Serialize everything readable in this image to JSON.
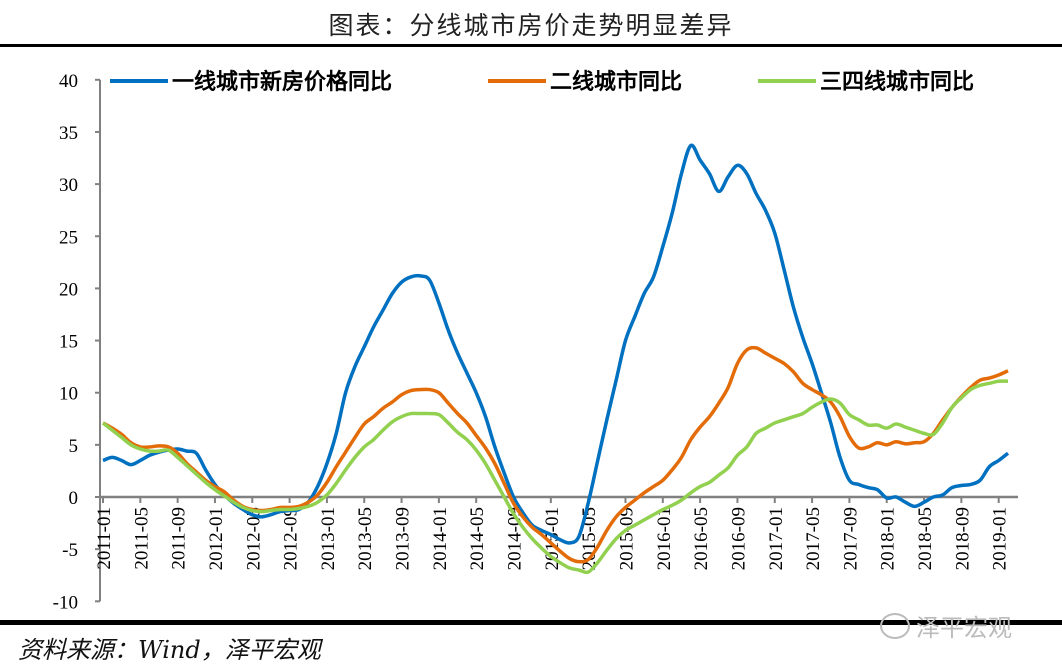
{
  "title": "图表：分线城市房价走势明显差异",
  "source": "资料来源：Wind，泽平宏观",
  "watermark": "泽平宏观",
  "chart_data": {
    "type": "line",
    "title": "",
    "xlabel": "",
    "ylabel": "",
    "ylim": [
      -10,
      40
    ],
    "yticks": [
      -10,
      -5,
      0,
      5,
      10,
      15,
      20,
      25,
      30,
      35,
      40
    ],
    "grid": false,
    "legend_position": "top",
    "x_start": "2011-01",
    "x_end": "2019-02",
    "x_tick_labels": [
      "2011-01",
      "2011-05",
      "2011-09",
      "2012-01",
      "2012-05",
      "2012-09",
      "2013-01",
      "2013-05",
      "2013-09",
      "2014-01",
      "2014-05",
      "2014-09",
      "2015-01",
      "2015-05",
      "2015-09",
      "2016-01",
      "2016-05",
      "2016-09",
      "2017-01",
      "2017-05",
      "2017-09",
      "2018-01",
      "2018-05",
      "2018-09",
      "2019-01"
    ],
    "series": [
      {
        "name": "一线城市新房价格同比",
        "color": "#0070C0",
        "values": [
          3.5,
          3.8,
          3.5,
          3.1,
          3.5,
          4.0,
          4.3,
          4.5,
          4.6,
          4.4,
          4.2,
          2.6,
          1.2,
          0.2,
          -0.6,
          -1.2,
          -1.7,
          -1.9,
          -1.7,
          -1.4,
          -1.3,
          -1.2,
          -0.5,
          1.0,
          3.2,
          6.1,
          10.0,
          12.5,
          14.4,
          16.3,
          17.9,
          19.5,
          20.6,
          21.1,
          21.2,
          20.8,
          18.6,
          16.0,
          13.8,
          11.9,
          10.0,
          7.7,
          4.8,
          2.3,
          0.0,
          -1.5,
          -2.7,
          -3.2,
          -3.6,
          -4.1,
          -4.4,
          -3.8,
          -0.6,
          3.4,
          7.4,
          11.2,
          15.0,
          17.3,
          19.5,
          21.1,
          24.0,
          27.2,
          31.0,
          33.7,
          32.3,
          31.0,
          29.3,
          30.7,
          31.8,
          31.0,
          29.1,
          27.5,
          25.3,
          21.8,
          18.2,
          15.3,
          12.8,
          10.0,
          7.1,
          3.8,
          1.6,
          1.2,
          0.9,
          0.7,
          -0.1,
          0.0,
          -0.5,
          -0.9,
          -0.5,
          0.0,
          0.2,
          0.9,
          1.1,
          1.2,
          1.6,
          2.9,
          3.5,
          4.2
        ]
      },
      {
        "name": "二线城市同比",
        "color": "#E36C09",
        "values": [
          7.1,
          6.6,
          6.0,
          5.2,
          4.8,
          4.8,
          4.9,
          4.8,
          4.2,
          3.2,
          2.4,
          1.6,
          1.0,
          0.5,
          -0.3,
          -0.9,
          -1.2,
          -1.3,
          -1.2,
          -1.0,
          -1.0,
          -0.9,
          -0.5,
          0.2,
          1.4,
          2.9,
          4.3,
          5.7,
          7.0,
          7.7,
          8.5,
          9.1,
          9.8,
          10.2,
          10.3,
          10.3,
          10.0,
          9.0,
          8.0,
          7.1,
          5.9,
          4.7,
          3.2,
          1.3,
          -0.6,
          -1.9,
          -2.9,
          -3.6,
          -4.4,
          -5.2,
          -5.9,
          -6.2,
          -6.0,
          -4.8,
          -3.2,
          -1.9,
          -1.0,
          -0.3,
          0.4,
          1.0,
          1.6,
          2.6,
          3.8,
          5.5,
          6.7,
          7.7,
          9.0,
          10.5,
          12.8,
          14.1,
          14.3,
          13.8,
          13.3,
          12.8,
          12.0,
          10.9,
          10.3,
          9.8,
          9.1,
          7.7,
          5.8,
          4.7,
          4.8,
          5.2,
          5.0,
          5.3,
          5.1,
          5.2,
          5.3,
          6.1,
          7.4,
          8.6,
          9.6,
          10.5,
          11.2,
          11.4,
          11.7,
          12.1
        ]
      },
      {
        "name": "三四线城市同比",
        "color": "#92D050",
        "values": [
          7.1,
          6.4,
          5.7,
          5.0,
          4.6,
          4.4,
          4.4,
          4.5,
          3.8,
          3.0,
          2.2,
          1.4,
          0.7,
          0.1,
          -0.5,
          -1.0,
          -1.3,
          -1.4,
          -1.3,
          -1.2,
          -1.2,
          -1.1,
          -0.9,
          -0.5,
          0.2,
          1.3,
          2.6,
          3.8,
          4.8,
          5.5,
          6.4,
          7.2,
          7.7,
          8.0,
          8.0,
          8.0,
          7.9,
          7.1,
          6.2,
          5.5,
          4.5,
          3.2,
          1.6,
          0.0,
          -1.6,
          -2.9,
          -4.0,
          -4.9,
          -5.7,
          -6.3,
          -6.8,
          -7.0,
          -7.2,
          -6.3,
          -5.1,
          -4.0,
          -3.2,
          -2.7,
          -2.2,
          -1.7,
          -1.2,
          -0.8,
          -0.3,
          0.4,
          1.0,
          1.4,
          2.1,
          2.8,
          4.0,
          4.8,
          6.1,
          6.6,
          7.1,
          7.4,
          7.7,
          8.0,
          8.6,
          9.1,
          9.4,
          9.0,
          7.9,
          7.4,
          6.9,
          6.9,
          6.6,
          7.0,
          6.7,
          6.4,
          6.1,
          6.0,
          7.1,
          8.6,
          9.5,
          10.3,
          10.7,
          10.9,
          11.1,
          11.1
        ]
      }
    ]
  }
}
